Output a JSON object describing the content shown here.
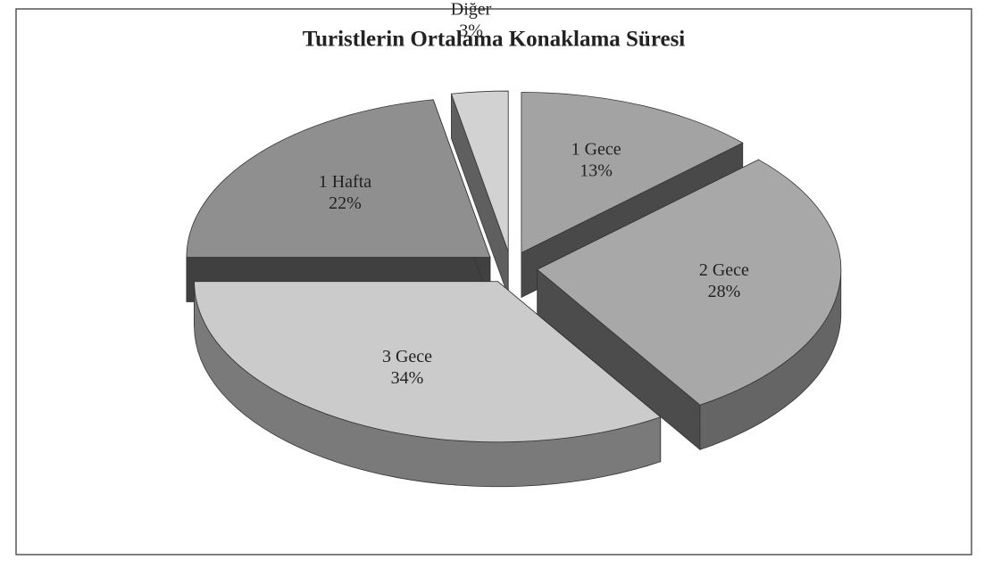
{
  "chart_data": {
    "type": "pie",
    "title": "Turistlerin Ortalama Konaklama Süresi",
    "categories": [
      "1 Gece",
      "2 Gece",
      "3 Gece",
      "1 Hafta",
      "Diğer"
    ],
    "values": [
      13,
      28,
      34,
      22,
      3
    ],
    "value_labels": [
      "13%",
      "28%",
      "34%",
      "22%",
      "3%"
    ],
    "colors": [
      "#a3a3a3",
      "#a8a8a8",
      "#cbcbcb",
      "#8f8f8f",
      "#d2d2d2"
    ]
  }
}
